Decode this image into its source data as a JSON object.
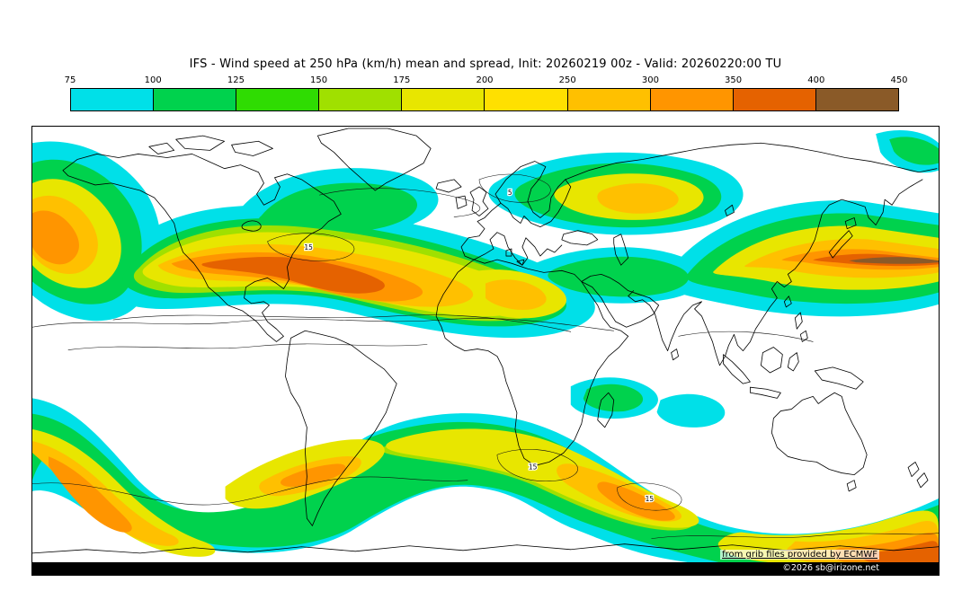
{
  "title": "IFS - Wind speed at 250 hPa (km/h) mean and spread, Init: 20260219 00z - Valid: 20260220:00 TU",
  "colorbar": {
    "ticks": [
      "75",
      "100",
      "125",
      "150",
      "175",
      "200",
      "250",
      "300",
      "350",
      "400",
      "450"
    ],
    "colors": [
      "#00e0e8",
      "#00d24d",
      "#2fdc02",
      "#a0e000",
      "#e8e600",
      "#ffe000",
      "#ffc000",
      "#ff9500",
      "#e56200",
      "#8a5a28"
    ]
  },
  "map": {
    "background": "#ffffff",
    "coastline_color": "#000000",
    "labels": [
      {
        "text": "15"
      },
      {
        "text": "5"
      },
      {
        "text": "15"
      },
      {
        "text": "15"
      }
    ],
    "credit": "from grib files provided by ECMWF",
    "copyright": "©2026 sb@irizone.net"
  }
}
